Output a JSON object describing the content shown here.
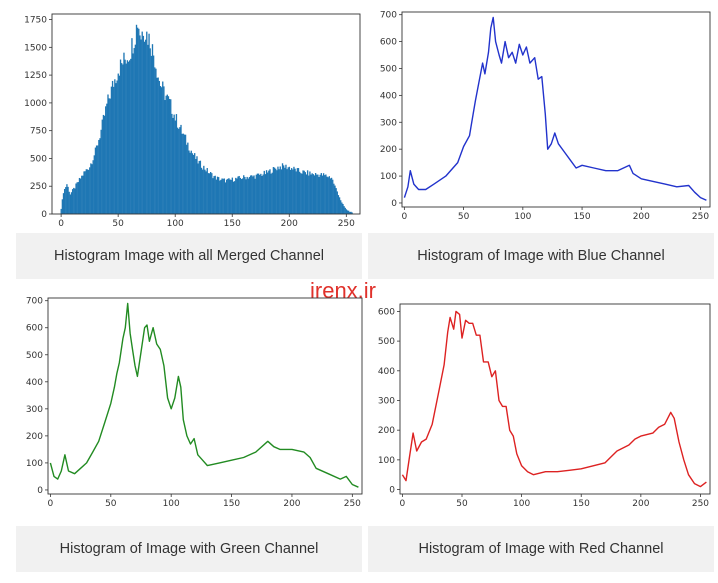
{
  "watermark": "irenx.ir",
  "chart_data": [
    {
      "type": "bar",
      "title": "",
      "caption": "Histogram Image with all Merged Channel",
      "color": "#1f77b4",
      "xlim": [
        -8,
        262
      ],
      "ylim": [
        0,
        1800
      ],
      "xticks": [
        0,
        50,
        100,
        150,
        200,
        250
      ],
      "yticks": [
        0,
        250,
        500,
        750,
        1000,
        1250,
        1500,
        1750
      ],
      "points": [
        [
          0,
          50
        ],
        [
          2,
          200
        ],
        [
          5,
          270
        ],
        [
          8,
          180
        ],
        [
          12,
          240
        ],
        [
          15,
          290
        ],
        [
          20,
          370
        ],
        [
          25,
          430
        ],
        [
          30,
          560
        ],
        [
          35,
          750
        ],
        [
          40,
          980
        ],
        [
          45,
          1150
        ],
        [
          50,
          1300
        ],
        [
          55,
          1380
        ],
        [
          60,
          1450
        ],
        [
          63,
          1550
        ],
        [
          65,
          1620
        ],
        [
          67,
          1740
        ],
        [
          70,
          1600
        ],
        [
          72,
          1680
        ],
        [
          75,
          1620
        ],
        [
          78,
          1560
        ],
        [
          82,
          1400
        ],
        [
          86,
          1200
        ],
        [
          90,
          1100
        ],
        [
          95,
          1000
        ],
        [
          100,
          870
        ],
        [
          105,
          760
        ],
        [
          110,
          650
        ],
        [
          115,
          550
        ],
        [
          120,
          470
        ],
        [
          125,
          420
        ],
        [
          130,
          370
        ],
        [
          135,
          330
        ],
        [
          140,
          310
        ],
        [
          145,
          300
        ],
        [
          150,
          310
        ],
        [
          160,
          330
        ],
        [
          170,
          340
        ],
        [
          180,
          370
        ],
        [
          190,
          420
        ],
        [
          195,
          430
        ],
        [
          200,
          420
        ],
        [
          210,
          380
        ],
        [
          220,
          360
        ],
        [
          230,
          350
        ],
        [
          237,
          330
        ],
        [
          240,
          250
        ],
        [
          243,
          180
        ],
        [
          246,
          100
        ],
        [
          250,
          40
        ],
        [
          255,
          10
        ]
      ]
    },
    {
      "type": "line",
      "title": "",
      "caption": "Histogram of Image with Blue Channel",
      "color": "#2233cc",
      "xlim": [
        -2,
        258
      ],
      "ylim": [
        -15,
        710
      ],
      "xticks": [
        0,
        50,
        100,
        150,
        200,
        250
      ],
      "yticks": [
        0,
        100,
        200,
        300,
        400,
        500,
        600,
        700
      ],
      "points": [
        [
          0,
          20
        ],
        [
          3,
          60
        ],
        [
          5,
          120
        ],
        [
          8,
          70
        ],
        [
          12,
          50
        ],
        [
          18,
          50
        ],
        [
          25,
          70
        ],
        [
          35,
          100
        ],
        [
          45,
          150
        ],
        [
          50,
          210
        ],
        [
          55,
          250
        ],
        [
          58,
          330
        ],
        [
          60,
          380
        ],
        [
          63,
          450
        ],
        [
          66,
          520
        ],
        [
          68,
          480
        ],
        [
          71,
          560
        ],
        [
          73,
          650
        ],
        [
          75,
          690
        ],
        [
          77,
          600
        ],
        [
          80,
          550
        ],
        [
          82,
          520
        ],
        [
          85,
          600
        ],
        [
          88,
          540
        ],
        [
          91,
          560
        ],
        [
          94,
          520
        ],
        [
          97,
          590
        ],
        [
          100,
          550
        ],
        [
          103,
          580
        ],
        [
          106,
          520
        ],
        [
          110,
          540
        ],
        [
          113,
          460
        ],
        [
          116,
          470
        ],
        [
          119,
          330
        ],
        [
          121,
          200
        ],
        [
          124,
          220
        ],
        [
          127,
          260
        ],
        [
          130,
          220
        ],
        [
          135,
          190
        ],
        [
          140,
          160
        ],
        [
          145,
          130
        ],
        [
          150,
          140
        ],
        [
          160,
          130
        ],
        [
          170,
          120
        ],
        [
          180,
          120
        ],
        [
          190,
          140
        ],
        [
          193,
          110
        ],
        [
          200,
          90
        ],
        [
          210,
          80
        ],
        [
          220,
          70
        ],
        [
          230,
          60
        ],
        [
          240,
          65
        ],
        [
          245,
          40
        ],
        [
          250,
          20
        ],
        [
          255,
          10
        ]
      ]
    },
    {
      "type": "line",
      "title": "",
      "caption": "Histogram of Image with Green Channel",
      "color": "#228b22",
      "xlim": [
        -2,
        258
      ],
      "ylim": [
        -15,
        710
      ],
      "xticks": [
        0,
        50,
        100,
        150,
        200,
        250
      ],
      "yticks": [
        0,
        100,
        200,
        300,
        400,
        500,
        600,
        700
      ],
      "points": [
        [
          0,
          100
        ],
        [
          3,
          50
        ],
        [
          6,
          40
        ],
        [
          9,
          70
        ],
        [
          12,
          130
        ],
        [
          15,
          70
        ],
        [
          20,
          60
        ],
        [
          25,
          80
        ],
        [
          30,
          100
        ],
        [
          35,
          140
        ],
        [
          40,
          180
        ],
        [
          45,
          250
        ],
        [
          50,
          320
        ],
        [
          53,
          380
        ],
        [
          55,
          430
        ],
        [
          57,
          470
        ],
        [
          60,
          560
        ],
        [
          62,
          600
        ],
        [
          64,
          690
        ],
        [
          66,
          580
        ],
        [
          68,
          520
        ],
        [
          70,
          460
        ],
        [
          72,
          420
        ],
        [
          75,
          510
        ],
        [
          78,
          600
        ],
        [
          80,
          610
        ],
        [
          82,
          550
        ],
        [
          85,
          600
        ],
        [
          88,
          540
        ],
        [
          91,
          520
        ],
        [
          94,
          460
        ],
        [
          97,
          340
        ],
        [
          100,
          300
        ],
        [
          103,
          340
        ],
        [
          106,
          420
        ],
        [
          108,
          380
        ],
        [
          110,
          260
        ],
        [
          113,
          200
        ],
        [
          116,
          170
        ],
        [
          119,
          190
        ],
        [
          122,
          130
        ],
        [
          126,
          110
        ],
        [
          130,
          90
        ],
        [
          140,
          100
        ],
        [
          150,
          110
        ],
        [
          160,
          120
        ],
        [
          170,
          140
        ],
        [
          180,
          180
        ],
        [
          185,
          160
        ],
        [
          190,
          150
        ],
        [
          200,
          150
        ],
        [
          210,
          140
        ],
        [
          215,
          120
        ],
        [
          220,
          80
        ],
        [
          230,
          60
        ],
        [
          240,
          40
        ],
        [
          245,
          50
        ],
        [
          250,
          20
        ],
        [
          255,
          10
        ]
      ]
    },
    {
      "type": "line",
      "title": "",
      "caption": "Histogram of Image with Red Channel",
      "color": "#dd2222",
      "xlim": [
        -2,
        258
      ],
      "ylim": [
        -15,
        625
      ],
      "xticks": [
        0,
        50,
        100,
        150,
        200,
        250
      ],
      "yticks": [
        0,
        100,
        200,
        300,
        400,
        500,
        600
      ],
      "points": [
        [
          0,
          50
        ],
        [
          3,
          30
        ],
        [
          6,
          110
        ],
        [
          9,
          190
        ],
        [
          12,
          130
        ],
        [
          16,
          160
        ],
        [
          20,
          170
        ],
        [
          25,
          220
        ],
        [
          30,
          320
        ],
        [
          35,
          420
        ],
        [
          38,
          530
        ],
        [
          40,
          580
        ],
        [
          43,
          540
        ],
        [
          45,
          600
        ],
        [
          48,
          590
        ],
        [
          50,
          510
        ],
        [
          53,
          570
        ],
        [
          56,
          560
        ],
        [
          59,
          560
        ],
        [
          62,
          520
        ],
        [
          65,
          520
        ],
        [
          68,
          430
        ],
        [
          72,
          430
        ],
        [
          75,
          380
        ],
        [
          78,
          400
        ],
        [
          81,
          300
        ],
        [
          84,
          280
        ],
        [
          87,
          280
        ],
        [
          90,
          200
        ],
        [
          93,
          180
        ],
        [
          96,
          120
        ],
        [
          100,
          80
        ],
        [
          105,
          60
        ],
        [
          110,
          50
        ],
        [
          120,
          60
        ],
        [
          130,
          60
        ],
        [
          140,
          65
        ],
        [
          150,
          70
        ],
        [
          160,
          80
        ],
        [
          170,
          90
        ],
        [
          175,
          110
        ],
        [
          180,
          130
        ],
        [
          190,
          150
        ],
        [
          195,
          170
        ],
        [
          200,
          180
        ],
        [
          210,
          190
        ],
        [
          215,
          210
        ],
        [
          220,
          220
        ],
        [
          225,
          260
        ],
        [
          228,
          240
        ],
        [
          232,
          160
        ],
        [
          236,
          100
        ],
        [
          240,
          50
        ],
        [
          245,
          20
        ],
        [
          250,
          10
        ],
        [
          255,
          25
        ]
      ]
    }
  ]
}
